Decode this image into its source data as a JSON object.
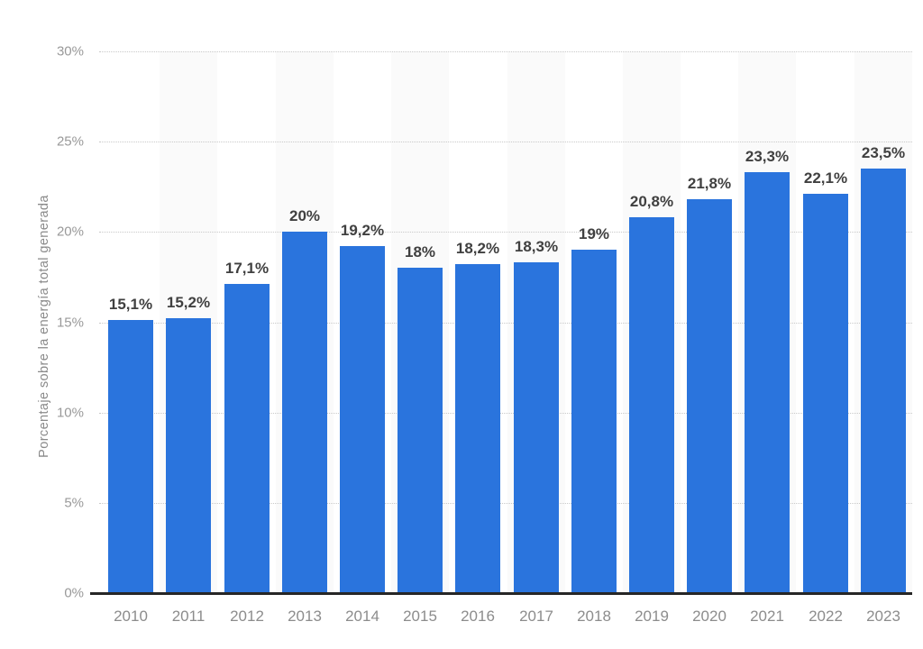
{
  "chart_data": {
    "type": "bar",
    "title": "",
    "xlabel": "",
    "ylabel": "Porcentaje sobre la energía total generada",
    "categories": [
      "2010",
      "2011",
      "2012",
      "2013",
      "2014",
      "2015",
      "2016",
      "2017",
      "2018",
      "2019",
      "2020",
      "2021",
      "2022",
      "2023"
    ],
    "values": [
      15.1,
      15.2,
      17.1,
      20,
      19.2,
      18,
      18.2,
      18.3,
      19,
      20.8,
      21.8,
      23.3,
      22.1,
      23.5
    ],
    "value_labels": [
      "15,1%",
      "15,2%",
      "17,1%",
      "20%",
      "19,2%",
      "18%",
      "18,2%",
      "18,3%",
      "19%",
      "20,8%",
      "21,8%",
      "23,3%",
      "22,1%",
      "23,5%"
    ],
    "ylim": [
      0,
      30
    ],
    "y_ticks": [
      {
        "value": 30,
        "label": "30%"
      },
      {
        "value": 25,
        "label": "25%"
      },
      {
        "value": 20,
        "label": "20%"
      },
      {
        "value": 15,
        "label": "15%"
      },
      {
        "value": 10,
        "label": "10%"
      },
      {
        "value": 5,
        "label": "5%"
      },
      {
        "value": 0,
        "label": "0%"
      }
    ],
    "grid": "horizontal-dotted",
    "legend_position": "none",
    "colors": {
      "bar": "#2a74dd",
      "column_band": "#fafafa",
      "gridline": "#c9c9c9",
      "baseline": "#262626",
      "y_tick_label": "#999999",
      "x_tick_label": "#8c8c8c",
      "value_label": "#404040",
      "axis_title": "#8a8a8a"
    }
  }
}
